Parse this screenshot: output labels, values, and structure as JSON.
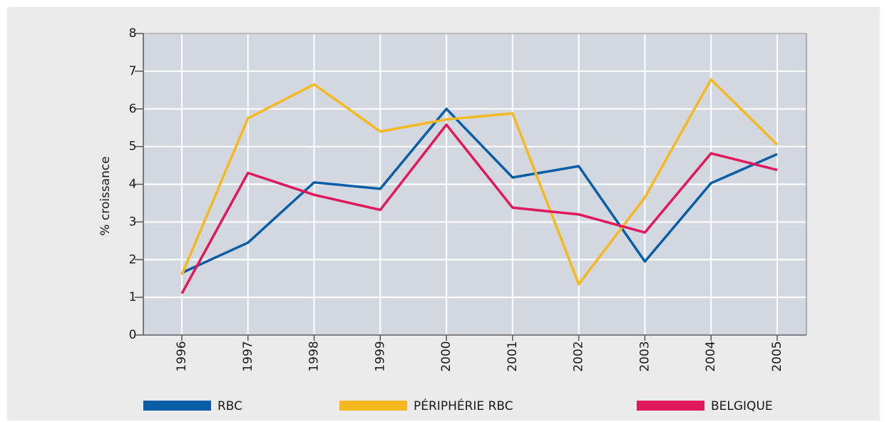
{
  "chart_data": {
    "type": "line",
    "y_label": "% croissance",
    "categories": [
      "1996",
      "1997",
      "1998",
      "1999",
      "2000",
      "2001",
      "2002",
      "2003",
      "2004",
      "2005"
    ],
    "series": [
      {
        "name": "RBC",
        "color": "#0a5ea8",
        "values": [
          1.65,
          2.45,
          4.05,
          3.88,
          6.0,
          4.18,
          4.48,
          1.95,
          4.03,
          4.8
        ]
      },
      {
        "name": "PÉRIPHÉRIE RBC",
        "color": "#f6b81f",
        "values": [
          1.6,
          5.75,
          6.65,
          5.4,
          5.72,
          5.88,
          1.35,
          3.65,
          6.78,
          5.05
        ]
      },
      {
        "name": "BELGIQUE",
        "color": "#e0195c",
        "values": [
          1.1,
          4.3,
          3.72,
          3.32,
          5.58,
          3.38,
          3.2,
          2.72,
          4.82,
          4.38
        ]
      }
    ],
    "ylim": [
      0,
      8
    ],
    "yticks": [
      0,
      1,
      2,
      3,
      4,
      5,
      6,
      7,
      8
    ],
    "grid": true,
    "legend": "bottom"
  }
}
